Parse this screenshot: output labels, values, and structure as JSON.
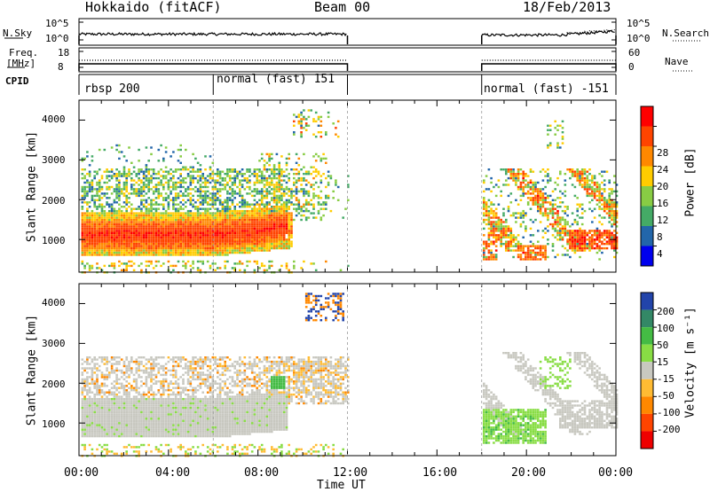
{
  "header": {
    "station": "Hokkaido (fitACF)",
    "beam": "Beam 00",
    "date": "18/Feb/2013"
  },
  "noise_panel": {
    "left_label": "N.Sky",
    "right_label": "N.Search",
    "left_ticks": [
      "10^5",
      "10^0"
    ],
    "right_ticks": [
      "10^5",
      "10^0"
    ]
  },
  "freq_panel": {
    "left_label_1": "Freq.",
    "left_label_2": "[MHz]",
    "right_label": "Nave",
    "left_ticks": [
      "18",
      "8"
    ],
    "right_ticks": [
      "60",
      "0"
    ]
  },
  "cpid_panel": {
    "label": "CPID",
    "segments": [
      {
        "text": "rbsp 200",
        "start": "00:00",
        "end": "06:00"
      },
      {
        "text": "normal (fast) 151",
        "start": "06:00",
        "end": "12:00"
      },
      {
        "text": "normal (fast) -151",
        "start": "18:00",
        "end": "00:00"
      }
    ]
  },
  "power_panel": {
    "ylabel": "Slant Range [km]",
    "yticks": [
      "4000",
      "3000",
      "2000",
      "1000"
    ],
    "colorbar_label": "Power [dB]",
    "colorbar_ticks": [
      "28",
      "24",
      "20",
      "16",
      "12",
      "8",
      "4"
    ],
    "colors": [
      "#ff0000",
      "#ff4400",
      "#ff8800",
      "#ffcc00",
      "#88cc44",
      "#44aa66",
      "#2266aa",
      "#0000ee"
    ]
  },
  "velocity_panel": {
    "ylabel": "Slant Range [km]",
    "yticks": [
      "4000",
      "3000",
      "2000",
      "1000"
    ],
    "colorbar_label": "Velocity [m s⁻¹]",
    "colorbar_ticks": [
      "200",
      "100",
      "50",
      "15",
      "-15",
      "-50",
      "-100",
      "-200"
    ],
    "colors": [
      "#2244aa",
      "#338866",
      "#44bb44",
      "#88dd44",
      "#c8c8c0",
      "#ffbb33",
      "#ff8800",
      "#ff4400",
      "#ee0000"
    ]
  },
  "x_axis": {
    "label": "Time UT",
    "ticks": [
      "00:00",
      "04:00",
      "08:00",
      "12:00",
      "16:00",
      "20:00",
      "00:00"
    ]
  },
  "chart_data": {
    "type": "heatmap",
    "title": "Hokkaido (fitACF)",
    "xlabel": "Time UT",
    "ylabel": "Slant Range [km]",
    "xlim": [
      "00:00",
      "24:00"
    ],
    "ylim": [
      180,
      4500
    ],
    "data_gap": [
      "12:00",
      "18:00"
    ],
    "power_dB_range": [
      0,
      30
    ],
    "velocity_range": [
      -200,
      200
    ],
    "echo_regions": [
      {
        "panel": "power",
        "t_start": 0,
        "t_end": 9,
        "range_km": [
          700,
          1500
        ],
        "power_dB": 28
      },
      {
        "panel": "power",
        "t_start": 0,
        "t_end": 12,
        "range_km": [
          1500,
          2800
        ],
        "power_dB": 10
      },
      {
        "panel": "power",
        "t_start": 18,
        "t_end": 24,
        "range_km": [
          500,
          2800
        ],
        "power_dB": 18
      },
      {
        "panel": "velocity",
        "t_start": 0,
        "t_end": 12,
        "range_km": [
          700,
          2600
        ],
        "velocity": 0
      },
      {
        "panel": "velocity",
        "t_start": 18.3,
        "t_end": 21,
        "range_km": [
          500,
          1400
        ],
        "velocity": 40
      }
    ]
  }
}
